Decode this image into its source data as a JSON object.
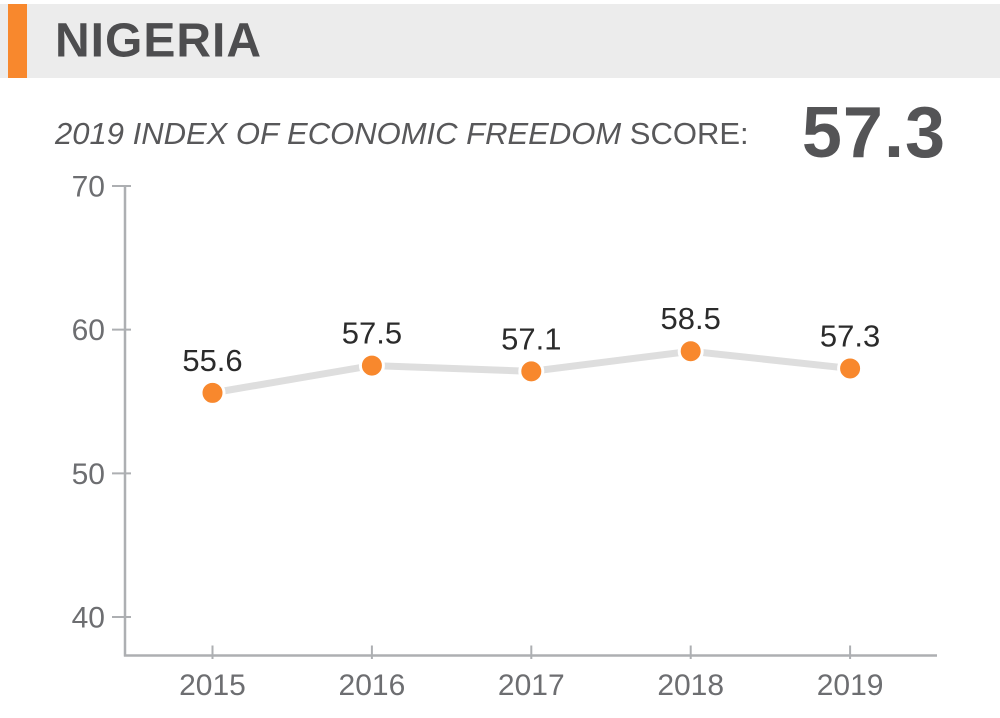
{
  "header": {
    "title": "NIGERIA",
    "accent_color": "#f8882d",
    "background": "#ececec"
  },
  "subtitle": {
    "italic_text": "2019 INDEX OF ECONOMIC FREEDOM",
    "normal_text": " SCORE:",
    "score": "57.3"
  },
  "chart_data": {
    "type": "line",
    "title": "Nigeria Index of Economic Freedom score by year",
    "categories": [
      "2015",
      "2016",
      "2017",
      "2018",
      "2019"
    ],
    "values": [
      55.6,
      57.5,
      57.1,
      58.5,
      57.3
    ],
    "point_labels": [
      "55.6",
      "57.5",
      "57.1",
      "58.5",
      "57.3"
    ],
    "xlabel": "",
    "ylabel": "",
    "yticks": [
      40,
      50,
      60,
      70
    ],
    "ylim": [
      37.3,
      70
    ],
    "grid": false,
    "legend": "none",
    "colors": {
      "point": "#f8882d",
      "point_border": "#ffffff",
      "line": "#dedede",
      "axis": "#adafb2",
      "tick_label": "#6d6e71",
      "point_label": "#2b2b2b"
    }
  }
}
